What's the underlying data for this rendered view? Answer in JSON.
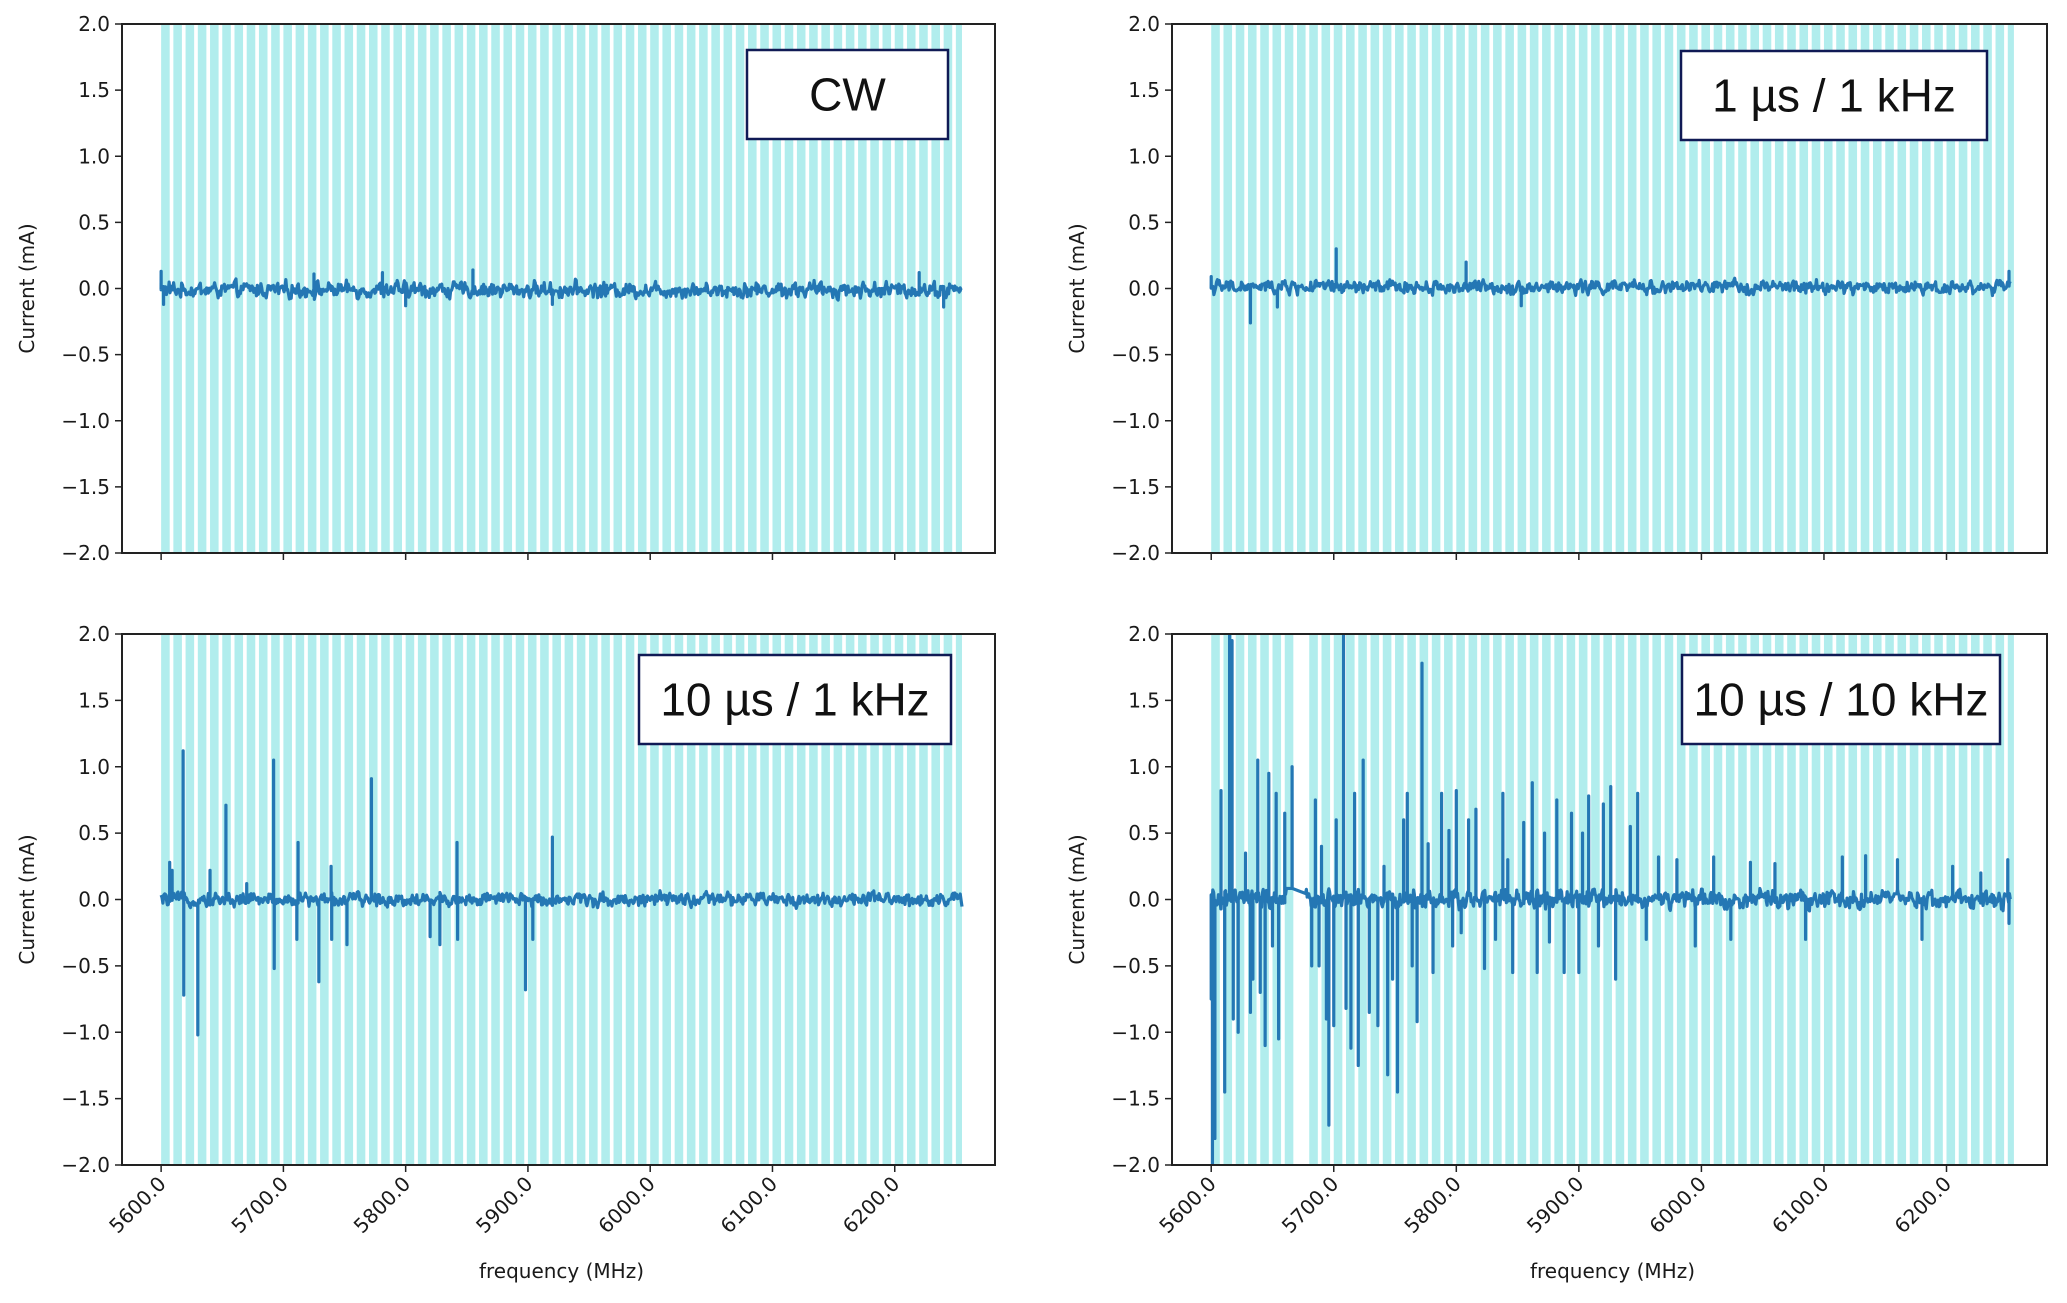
{
  "figure": {
    "background": "#ffffff",
    "shade_color": "#b1eded",
    "line_color": "#2477b4",
    "badge_border_color": "#101a55",
    "axis_color": "#222222"
  },
  "chart_data": [
    {
      "type": "line",
      "panel": "top-left",
      "title": "",
      "badge": "CW",
      "xlabel": "",
      "ylabel": "Current (mA)",
      "xlim": [
        5568,
        6282
      ],
      "ylim": [
        -2.0,
        2.0
      ],
      "xticks": [
        5600,
        5700,
        5800,
        5900,
        6000,
        6100,
        6200
      ],
      "xtick_labels": [],
      "yticks": [
        -2.0,
        -1.5,
        -1.0,
        -0.5,
        0.0,
        0.5,
        1.0,
        1.5,
        2.0
      ],
      "ytick_labels": [
        "−2.0",
        "−1.5",
        "−1.0",
        "−0.5",
        "0.0",
        "0.5",
        "1.0",
        "1.5",
        "2.0"
      ],
      "grid": false,
      "shaded_bands": {
        "start_mhz": 5600,
        "end_mhz": 6255,
        "step_mhz": 10,
        "fill_fraction": 0.7,
        "gaps_mhz": []
      },
      "series": [
        {
          "name": "current",
          "x_start_mhz": 5600,
          "x_end_mhz": 6255,
          "samples": 900,
          "baseline_ma": -0.01,
          "noise_amplitude_ma": 0.07,
          "spikes": [
            {
              "f": 5600,
              "v": 0.13
            },
            {
              "f": 5602,
              "v": -0.12
            },
            {
              "f": 5725,
              "v": 0.11
            },
            {
              "f": 5781,
              "v": 0.12
            },
            {
              "f": 5800,
              "v": -0.13
            },
            {
              "f": 5855,
              "v": 0.14
            },
            {
              "f": 5920,
              "v": -0.12
            },
            {
              "f": 6220,
              "v": 0.12
            },
            {
              "f": 6240,
              "v": -0.14
            }
          ]
        }
      ]
    },
    {
      "type": "line",
      "panel": "top-right",
      "title": "",
      "badge": "1 µs / 1 kHz",
      "xlabel": "",
      "ylabel": "Current (mA)",
      "xlim": [
        5568,
        6282
      ],
      "ylim": [
        -2.0,
        2.0
      ],
      "xticks": [
        5600,
        5700,
        5800,
        5900,
        6000,
        6100,
        6200
      ],
      "xtick_labels": [],
      "yticks": [
        -2.0,
        -1.5,
        -1.0,
        -0.5,
        0.0,
        0.5,
        1.0,
        1.5,
        2.0
      ],
      "ytick_labels": [
        "−2.0",
        "−1.5",
        "−1.0",
        "−0.5",
        "0.0",
        "0.5",
        "1.0",
        "1.5",
        "2.0"
      ],
      "grid": false,
      "shaded_bands": {
        "start_mhz": 5600,
        "end_mhz": 6255,
        "step_mhz": 10,
        "fill_fraction": 0.7,
        "gaps_mhz": []
      },
      "series": [
        {
          "name": "current",
          "x_start_mhz": 5600,
          "x_end_mhz": 6252,
          "samples": 900,
          "baseline_ma": 0.01,
          "noise_amplitude_ma": 0.06,
          "spikes": [
            {
              "f": 5600,
              "v": 0.09
            },
            {
              "f": 5632,
              "v": -0.26
            },
            {
              "f": 5654,
              "v": -0.14
            },
            {
              "f": 5702,
              "v": 0.3
            },
            {
              "f": 5808,
              "v": 0.2
            },
            {
              "f": 5853,
              "v": -0.13
            },
            {
              "f": 6251,
              "v": 0.13
            }
          ]
        }
      ]
    },
    {
      "type": "line",
      "panel": "bottom-left",
      "title": "",
      "badge": "10 µs / 1 kHz",
      "xlabel": "frequency (MHz)",
      "ylabel": "Current (mA)",
      "xlim": [
        5568,
        6282
      ],
      "ylim": [
        -2.0,
        2.0
      ],
      "xticks": [
        5600,
        5700,
        5800,
        5900,
        6000,
        6100,
        6200
      ],
      "xtick_labels": [
        "5600.0",
        "5700.0",
        "5800.0",
        "5900.0",
        "6000.0",
        "6100.0",
        "6200.0"
      ],
      "yticks": [
        -2.0,
        -1.5,
        -1.0,
        -0.5,
        0.0,
        0.5,
        1.0,
        1.5,
        2.0
      ],
      "ytick_labels": [
        "−2.0",
        "−1.5",
        "−1.0",
        "−0.5",
        "0.0",
        "0.5",
        "1.0",
        "1.5",
        "2.0"
      ],
      "grid": false,
      "shaded_bands": {
        "start_mhz": 5600,
        "end_mhz": 6255,
        "step_mhz": 10,
        "fill_fraction": 0.7,
        "gaps_mhz": []
      },
      "series": [
        {
          "name": "current",
          "x_start_mhz": 5600,
          "x_end_mhz": 6255,
          "samples": 900,
          "baseline_ma": 0.0,
          "noise_amplitude_ma": 0.06,
          "spikes": [
            {
              "f": 5607,
              "v": 0.28
            },
            {
              "f": 5609,
              "v": 0.22
            },
            {
              "f": 5618,
              "v": 1.12
            },
            {
              "f": 5618.5,
              "v": -0.72
            },
            {
              "f": 5630,
              "v": -1.02
            },
            {
              "f": 5640,
              "v": 0.22
            },
            {
              "f": 5653,
              "v": 0.71
            },
            {
              "f": 5670,
              "v": 0.12
            },
            {
              "f": 5692,
              "v": 1.05
            },
            {
              "f": 5692.5,
              "v": -0.52
            },
            {
              "f": 5712,
              "v": 0.43
            },
            {
              "f": 5711,
              "v": -0.3
            },
            {
              "f": 5729,
              "v": -0.62
            },
            {
              "f": 5739,
              "v": 0.25
            },
            {
              "f": 5739.5,
              "v": -0.3
            },
            {
              "f": 5752,
              "v": -0.34
            },
            {
              "f": 5772,
              "v": 0.91
            },
            {
              "f": 5820,
              "v": -0.28
            },
            {
              "f": 5828,
              "v": -0.34
            },
            {
              "f": 5842,
              "v": 0.43
            },
            {
              "f": 5842.5,
              "v": -0.3
            },
            {
              "f": 5898,
              "v": -0.68
            },
            {
              "f": 5904,
              "v": -0.3
            },
            {
              "f": 5920,
              "v": 0.47
            }
          ]
        }
      ]
    },
    {
      "type": "line",
      "panel": "bottom-right",
      "title": "",
      "badge": "10 µs / 10 kHz",
      "xlabel": "frequency (MHz)",
      "ylabel": "Current (mA)",
      "xlim": [
        5568,
        6282
      ],
      "ylim": [
        -2.0,
        2.0
      ],
      "xticks": [
        5600,
        5700,
        5800,
        5900,
        6000,
        6100,
        6200
      ],
      "xtick_labels": [
        "5600.0",
        "5700.0",
        "5800.0",
        "5900.0",
        "6000.0",
        "6100.0",
        "6200.0"
      ],
      "yticks": [
        -2.0,
        -1.5,
        -1.0,
        -0.5,
        0.0,
        0.5,
        1.0,
        1.5,
        2.0
      ],
      "ytick_labels": [
        "−2.0",
        "−1.5",
        "−1.0",
        "−0.5",
        "0.0",
        "0.5",
        "1.0",
        "1.5",
        "2.0"
      ],
      "grid": false,
      "shaded_bands": {
        "start_mhz": 5600,
        "end_mhz": 6255,
        "step_mhz": 10,
        "fill_fraction": 0.7,
        "gaps_mhz": [
          [
            5662,
            5677
          ]
        ]
      },
      "series": [
        {
          "name": "current",
          "x_start_mhz": 5600,
          "x_end_mhz": 6252,
          "samples": 1000,
          "baseline_ma": 0.0,
          "noise_amplitude_ma": 0.08,
          "connect_gap_mhz": [
            5662,
            5677
          ],
          "spikes": [
            {
              "f": 5600,
              "v": -0.75
            },
            {
              "f": 5601,
              "v": -2.0
            },
            {
              "f": 5603,
              "v": -1.8
            },
            {
              "f": 5608,
              "v": 0.82
            },
            {
              "f": 5611,
              "v": -1.45
            },
            {
              "f": 5615,
              "v": 2.0
            },
            {
              "f": 5617,
              "v": 1.95
            },
            {
              "f": 5618,
              "v": -0.9
            },
            {
              "f": 5622,
              "v": -1.0
            },
            {
              "f": 5628,
              "v": 0.35
            },
            {
              "f": 5632,
              "v": -0.85
            },
            {
              "f": 5634,
              "v": -0.6
            },
            {
              "f": 5638,
              "v": 1.05
            },
            {
              "f": 5640,
              "v": -0.7
            },
            {
              "f": 5644,
              "v": -1.1
            },
            {
              "f": 5647,
              "v": 0.95
            },
            {
              "f": 5650,
              "v": -0.35
            },
            {
              "f": 5653,
              "v": 0.8
            },
            {
              "f": 5655,
              "v": -1.05
            },
            {
              "f": 5660,
              "v": 0.65
            },
            {
              "f": 5666,
              "v": 1.0
            },
            {
              "f": 5682,
              "v": -0.5
            },
            {
              "f": 5685,
              "v": 0.75
            },
            {
              "f": 5688,
              "v": -0.5
            },
            {
              "f": 5690,
              "v": 0.4
            },
            {
              "f": 5694,
              "v": -0.9
            },
            {
              "f": 5696,
              "v": -1.7
            },
            {
              "f": 5700,
              "v": -0.95
            },
            {
              "f": 5702,
              "v": 0.6
            },
            {
              "f": 5708,
              "v": 2.0
            },
            {
              "f": 5710,
              "v": -0.82
            },
            {
              "f": 5714,
              "v": -1.12
            },
            {
              "f": 5717,
              "v": 0.8
            },
            {
              "f": 5720,
              "v": -1.25
            },
            {
              "f": 5724,
              "v": 1.05
            },
            {
              "f": 5729,
              "v": -0.85
            },
            {
              "f": 5736,
              "v": -0.95
            },
            {
              "f": 5741,
              "v": 0.25
            },
            {
              "f": 5744,
              "v": -1.32
            },
            {
              "f": 5748,
              "v": -0.6
            },
            {
              "f": 5752,
              "v": -1.45
            },
            {
              "f": 5757,
              "v": 0.6
            },
            {
              "f": 5760,
              "v": 0.8
            },
            {
              "f": 5764,
              "v": -0.5
            },
            {
              "f": 5768,
              "v": -0.92
            },
            {
              "f": 5772,
              "v": 1.78
            },
            {
              "f": 5777,
              "v": 0.42
            },
            {
              "f": 5781,
              "v": -0.55
            },
            {
              "f": 5788,
              "v": 0.8
            },
            {
              "f": 5794,
              "v": 0.52
            },
            {
              "f": 5797,
              "v": -0.35
            },
            {
              "f": 5800,
              "v": 0.82
            },
            {
              "f": 5804,
              "v": -0.25
            },
            {
              "f": 5810,
              "v": 0.6
            },
            {
              "f": 5816,
              "v": 0.68
            },
            {
              "f": 5823,
              "v": -0.52
            },
            {
              "f": 5832,
              "v": -0.3
            },
            {
              "f": 5838,
              "v": 0.8
            },
            {
              "f": 5842,
              "v": 0.3
            },
            {
              "f": 5846,
              "v": -0.55
            },
            {
              "f": 5855,
              "v": 0.58
            },
            {
              "f": 5862,
              "v": 0.88
            },
            {
              "f": 5866,
              "v": -0.55
            },
            {
              "f": 5872,
              "v": 0.5
            },
            {
              "f": 5876,
              "v": -0.32
            },
            {
              "f": 5882,
              "v": 0.75
            },
            {
              "f": 5888,
              "v": -0.55
            },
            {
              "f": 5894,
              "v": 0.65
            },
            {
              "f": 5900,
              "v": -0.55
            },
            {
              "f": 5903,
              "v": 0.5
            },
            {
              "f": 5908,
              "v": 0.78
            },
            {
              "f": 5916,
              "v": -0.35
            },
            {
              "f": 5920,
              "v": 0.72
            },
            {
              "f": 5926,
              "v": 0.85
            },
            {
              "f": 5930,
              "v": -0.6
            },
            {
              "f": 5942,
              "v": 0.55
            },
            {
              "f": 5948,
              "v": 0.8
            },
            {
              "f": 5955,
              "v": -0.3
            },
            {
              "f": 5965,
              "v": 0.32
            },
            {
              "f": 5980,
              "v": 0.3
            },
            {
              "f": 5995,
              "v": -0.35
            },
            {
              "f": 6010,
              "v": 0.32
            },
            {
              "f": 6024,
              "v": -0.3
            },
            {
              "f": 6040,
              "v": 0.28
            },
            {
              "f": 6060,
              "v": 0.27
            },
            {
              "f": 6085,
              "v": -0.3
            },
            {
              "f": 6115,
              "v": 0.32
            },
            {
              "f": 6134,
              "v": 0.33
            },
            {
              "f": 6160,
              "v": 0.3
            },
            {
              "f": 6180,
              "v": -0.3
            },
            {
              "f": 6205,
              "v": 0.25
            },
            {
              "f": 6228,
              "v": 0.2
            },
            {
              "f": 6250,
              "v": 0.3
            },
            {
              "f": 6251,
              "v": -0.18
            }
          ]
        }
      ]
    }
  ]
}
